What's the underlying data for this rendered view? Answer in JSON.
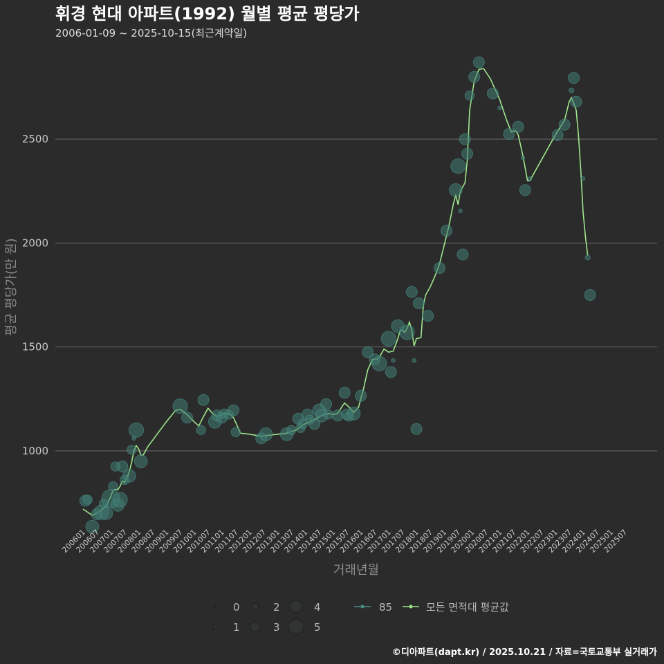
{
  "title": "휘경 현대 아파트(1992) 월별 평균 평당가",
  "subtitle": "2006-01-09 ~ 2025-10-15(최근계약일)",
  "caption": "©디아파트(dapt.kr) / 2025.10.21 / 자료=국토교통부 실거래가",
  "colors": {
    "background": "#2b2b2c",
    "bubble": "#3f7c73",
    "average_line": "#9ee68a"
  },
  "chart_data": {
    "type": "scatter",
    "title": "휘경 현대 아파트(1992) 월별 평균 평당가",
    "xlabel": "거래년월",
    "ylabel": "평균 평당가(만 원)",
    "ylim": [
      640,
      2920
    ],
    "yticks": [
      1000,
      1500,
      2000,
      2500
    ],
    "xlim": [
      0,
      239
    ],
    "xticks": [
      "200601",
      "200607",
      "200701",
      "200707",
      "200801",
      "200807",
      "200901",
      "200907",
      "201001",
      "201007",
      "201101",
      "201107",
      "201201",
      "201207",
      "201301",
      "201307",
      "201401",
      "201407",
      "201501",
      "201507",
      "201601",
      "201607",
      "201701",
      "201707",
      "201801",
      "201807",
      "201901",
      "201907",
      "202001",
      "202007",
      "202101",
      "202107",
      "202201",
      "202207",
      "202301",
      "202307",
      "202401",
      "202407",
      "202501",
      "202507"
    ],
    "size_legend": {
      "title": "",
      "values": [
        0,
        1,
        2,
        3,
        4,
        5
      ]
    },
    "series": [
      {
        "name": "85",
        "kind": "bubble",
        "points": [
          {
            "x": 1,
            "y": 760,
            "s": 2.5
          },
          {
            "x": 2,
            "y": 765,
            "s": 2
          },
          {
            "x": 4,
            "y": 635,
            "s": 3
          },
          {
            "x": 6,
            "y": 695,
            "s": 2.5
          },
          {
            "x": 8,
            "y": 705,
            "s": 3.5
          },
          {
            "x": 9,
            "y": 745,
            "s": 2
          },
          {
            "x": 10,
            "y": 700,
            "s": 3
          },
          {
            "x": 12,
            "y": 770,
            "s": 4.5
          },
          {
            "x": 13,
            "y": 830,
            "s": 2
          },
          {
            "x": 14,
            "y": 925,
            "s": 2
          },
          {
            "x": 15,
            "y": 740,
            "s": 3
          },
          {
            "x": 16,
            "y": 765,
            "s": 3.5
          },
          {
            "x": 17,
            "y": 925,
            "s": 2.5
          },
          {
            "x": 18,
            "y": 860,
            "s": 2
          },
          {
            "x": 20,
            "y": 880,
            "s": 3
          },
          {
            "x": 21,
            "y": 1005,
            "s": 2
          },
          {
            "x": 22,
            "y": 1060,
            "s": 0.5
          },
          {
            "x": 23,
            "y": 1100,
            "s": 3.5
          },
          {
            "x": 25,
            "y": 950,
            "s": 3
          },
          {
            "x": 42,
            "y": 1215,
            "s": 3.5
          },
          {
            "x": 45,
            "y": 1160,
            "s": 2.5
          },
          {
            "x": 51,
            "y": 1100,
            "s": 2
          },
          {
            "x": 52,
            "y": 1245,
            "s": 2.5
          },
          {
            "x": 57,
            "y": 1140,
            "s": 3
          },
          {
            "x": 58,
            "y": 1170,
            "s": 2.5
          },
          {
            "x": 60,
            "y": 1160,
            "s": 2.5
          },
          {
            "x": 61,
            "y": 1180,
            "s": 2
          },
          {
            "x": 63,
            "y": 1175,
            "s": 2
          },
          {
            "x": 65,
            "y": 1195,
            "s": 2.5
          },
          {
            "x": 66,
            "y": 1090,
            "s": 2
          },
          {
            "x": 77,
            "y": 1060,
            "s": 2.5
          },
          {
            "x": 79,
            "y": 1080,
            "s": 3
          },
          {
            "x": 88,
            "y": 1080,
            "s": 3
          },
          {
            "x": 90,
            "y": 1100,
            "s": 2
          },
          {
            "x": 93,
            "y": 1155,
            "s": 2.5
          },
          {
            "x": 94,
            "y": 1110,
            "s": 2
          },
          {
            "x": 95,
            "y": 1130,
            "s": 2
          },
          {
            "x": 97,
            "y": 1175,
            "s": 2.5
          },
          {
            "x": 98,
            "y": 1150,
            "s": 2
          },
          {
            "x": 100,
            "y": 1130,
            "s": 2.5
          },
          {
            "x": 102,
            "y": 1195,
            "s": 3
          },
          {
            "x": 103,
            "y": 1170,
            "s": 3
          },
          {
            "x": 105,
            "y": 1225,
            "s": 2.5
          },
          {
            "x": 106,
            "y": 1175,
            "s": 2
          },
          {
            "x": 110,
            "y": 1170,
            "s": 2.5
          },
          {
            "x": 113,
            "y": 1280,
            "s": 2.5
          },
          {
            "x": 114,
            "y": 1175,
            "s": 2.5
          },
          {
            "x": 115,
            "y": 1165,
            "s": 2
          },
          {
            "x": 117,
            "y": 1180,
            "s": 3
          },
          {
            "x": 120,
            "y": 1265,
            "s": 2.5
          },
          {
            "x": 123,
            "y": 1475,
            "s": 2.5
          },
          {
            "x": 126,
            "y": 1440,
            "s": 2.5
          },
          {
            "x": 128,
            "y": 1420,
            "s": 3.5
          },
          {
            "x": 132,
            "y": 1540,
            "s": 3.5
          },
          {
            "x": 133,
            "y": 1380,
            "s": 2.5
          },
          {
            "x": 134,
            "y": 1435,
            "s": 0.5
          },
          {
            "x": 136,
            "y": 1600,
            "s": 3
          },
          {
            "x": 140,
            "y": 1570,
            "s": 3.5
          },
          {
            "x": 142,
            "y": 1765,
            "s": 2.5
          },
          {
            "x": 143,
            "y": 1435,
            "s": 0.5
          },
          {
            "x": 144,
            "y": 1105,
            "s": 2.5
          },
          {
            "x": 145,
            "y": 1710,
            "s": 2.5
          },
          {
            "x": 149,
            "y": 1650,
            "s": 2.5
          },
          {
            "x": 154,
            "y": 1880,
            "s": 2.5
          },
          {
            "x": 157,
            "y": 2060,
            "s": 2.5
          },
          {
            "x": 161,
            "y": 2255,
            "s": 3
          },
          {
            "x": 162,
            "y": 2370,
            "s": 3.5
          },
          {
            "x": 163,
            "y": 2155,
            "s": 0.5
          },
          {
            "x": 164,
            "y": 1945,
            "s": 2.5
          },
          {
            "x": 165,
            "y": 2500,
            "s": 2.5
          },
          {
            "x": 166,
            "y": 2430,
            "s": 2.5
          },
          {
            "x": 167,
            "y": 2710,
            "s": 2
          },
          {
            "x": 169,
            "y": 2800,
            "s": 2.5
          },
          {
            "x": 171,
            "y": 2870,
            "s": 2.5
          },
          {
            "x": 177,
            "y": 2720,
            "s": 2.5
          },
          {
            "x": 180,
            "y": 2650,
            "s": 0.5
          },
          {
            "x": 184,
            "y": 2525,
            "s": 2.5
          },
          {
            "x": 188,
            "y": 2560,
            "s": 2.5
          },
          {
            "x": 190,
            "y": 2410,
            "s": 0.5
          },
          {
            "x": 191,
            "y": 2255,
            "s": 2.5
          },
          {
            "x": 193,
            "y": 2310,
            "s": 0.5
          },
          {
            "x": 205,
            "y": 2520,
            "s": 2.5
          },
          {
            "x": 208,
            "y": 2570,
            "s": 2.5
          },
          {
            "x": 211,
            "y": 2735,
            "s": 0.8
          },
          {
            "x": 212,
            "y": 2795,
            "s": 2.5
          },
          {
            "x": 213,
            "y": 2680,
            "s": 2.5
          },
          {
            "x": 216,
            "y": 2310,
            "s": 0.5
          },
          {
            "x": 218,
            "y": 1930,
            "s": 0.8
          },
          {
            "x": 219,
            "y": 1750,
            "s": 2.5
          }
        ]
      },
      {
        "name": "모든 면적대 평균값",
        "kind": "line",
        "points": [
          {
            "x": 0,
            "y": 720
          },
          {
            "x": 2,
            "y": 705
          },
          {
            "x": 4,
            "y": 690
          },
          {
            "x": 6,
            "y": 700
          },
          {
            "x": 8,
            "y": 715
          },
          {
            "x": 10,
            "y": 735
          },
          {
            "x": 12,
            "y": 780
          },
          {
            "x": 13,
            "y": 810
          },
          {
            "x": 14,
            "y": 815
          },
          {
            "x": 15,
            "y": 812
          },
          {
            "x": 16,
            "y": 830
          },
          {
            "x": 17,
            "y": 855
          },
          {
            "x": 18,
            "y": 848
          },
          {
            "x": 19,
            "y": 870
          },
          {
            "x": 20,
            "y": 900
          },
          {
            "x": 21,
            "y": 945
          },
          {
            "x": 22,
            "y": 1000
          },
          {
            "x": 23,
            "y": 1025
          },
          {
            "x": 24,
            "y": 1010
          },
          {
            "x": 25,
            "y": 980
          },
          {
            "x": 26,
            "y": 980
          },
          {
            "x": 28,
            "y": 1020
          },
          {
            "x": 32,
            "y": 1080
          },
          {
            "x": 36,
            "y": 1140
          },
          {
            "x": 40,
            "y": 1195
          },
          {
            "x": 42,
            "y": 1200
          },
          {
            "x": 45,
            "y": 1175
          },
          {
            "x": 48,
            "y": 1140
          },
          {
            "x": 50,
            "y": 1120
          },
          {
            "x": 52,
            "y": 1165
          },
          {
            "x": 54,
            "y": 1205
          },
          {
            "x": 56,
            "y": 1180
          },
          {
            "x": 58,
            "y": 1165
          },
          {
            "x": 61,
            "y": 1180
          },
          {
            "x": 63,
            "y": 1180
          },
          {
            "x": 65,
            "y": 1160
          },
          {
            "x": 67,
            "y": 1110
          },
          {
            "x": 68,
            "y": 1085
          },
          {
            "x": 72,
            "y": 1080
          },
          {
            "x": 77,
            "y": 1070
          },
          {
            "x": 80,
            "y": 1075
          },
          {
            "x": 88,
            "y": 1085
          },
          {
            "x": 92,
            "y": 1100
          },
          {
            "x": 95,
            "y": 1125
          },
          {
            "x": 98,
            "y": 1140
          },
          {
            "x": 100,
            "y": 1150
          },
          {
            "x": 103,
            "y": 1170
          },
          {
            "x": 106,
            "y": 1180
          },
          {
            "x": 108,
            "y": 1175
          },
          {
            "x": 110,
            "y": 1180
          },
          {
            "x": 112,
            "y": 1215
          },
          {
            "x": 113,
            "y": 1230
          },
          {
            "x": 115,
            "y": 1210
          },
          {
            "x": 117,
            "y": 1185
          },
          {
            "x": 119,
            "y": 1210
          },
          {
            "x": 121,
            "y": 1290
          },
          {
            "x": 123,
            "y": 1390
          },
          {
            "x": 125,
            "y": 1440
          },
          {
            "x": 127,
            "y": 1440
          },
          {
            "x": 128,
            "y": 1450
          },
          {
            "x": 130,
            "y": 1490
          },
          {
            "x": 132,
            "y": 1475
          },
          {
            "x": 134,
            "y": 1480
          },
          {
            "x": 136,
            "y": 1540
          },
          {
            "x": 137,
            "y": 1580
          },
          {
            "x": 138,
            "y": 1580
          },
          {
            "x": 139,
            "y": 1570
          },
          {
            "x": 140,
            "y": 1590
          },
          {
            "x": 141,
            "y": 1620
          },
          {
            "x": 142,
            "y": 1580
          },
          {
            "x": 143,
            "y": 1505
          },
          {
            "x": 144,
            "y": 1540
          },
          {
            "x": 146,
            "y": 1545
          },
          {
            "x": 147,
            "y": 1700
          },
          {
            "x": 148,
            "y": 1750
          },
          {
            "x": 150,
            "y": 1790
          },
          {
            "x": 152,
            "y": 1840
          },
          {
            "x": 154,
            "y": 1900
          },
          {
            "x": 156,
            "y": 1990
          },
          {
            "x": 158,
            "y": 2080
          },
          {
            "x": 160,
            "y": 2190
          },
          {
            "x": 161,
            "y": 2230
          },
          {
            "x": 162,
            "y": 2185
          },
          {
            "x": 163,
            "y": 2250
          },
          {
            "x": 165,
            "y": 2290
          },
          {
            "x": 166,
            "y": 2400
          },
          {
            "x": 167,
            "y": 2640
          },
          {
            "x": 169,
            "y": 2780
          },
          {
            "x": 171,
            "y": 2835
          },
          {
            "x": 173,
            "y": 2840
          },
          {
            "x": 176,
            "y": 2790
          },
          {
            "x": 180,
            "y": 2690
          },
          {
            "x": 183,
            "y": 2590
          },
          {
            "x": 185,
            "y": 2535
          },
          {
            "x": 187,
            "y": 2540
          },
          {
            "x": 188,
            "y": 2520
          },
          {
            "x": 190,
            "y": 2420
          },
          {
            "x": 192,
            "y": 2300
          },
          {
            "x": 193,
            "y": 2300
          },
          {
            "x": 196,
            "y": 2360
          },
          {
            "x": 200,
            "y": 2440
          },
          {
            "x": 204,
            "y": 2520
          },
          {
            "x": 208,
            "y": 2590
          },
          {
            "x": 210,
            "y": 2680
          },
          {
            "x": 211,
            "y": 2700
          },
          {
            "x": 213,
            "y": 2640
          },
          {
            "x": 214,
            "y": 2520
          },
          {
            "x": 215,
            "y": 2350
          },
          {
            "x": 216,
            "y": 2150
          },
          {
            "x": 217,
            "y": 2030
          },
          {
            "x": 218,
            "y": 1940
          }
        ]
      }
    ]
  }
}
